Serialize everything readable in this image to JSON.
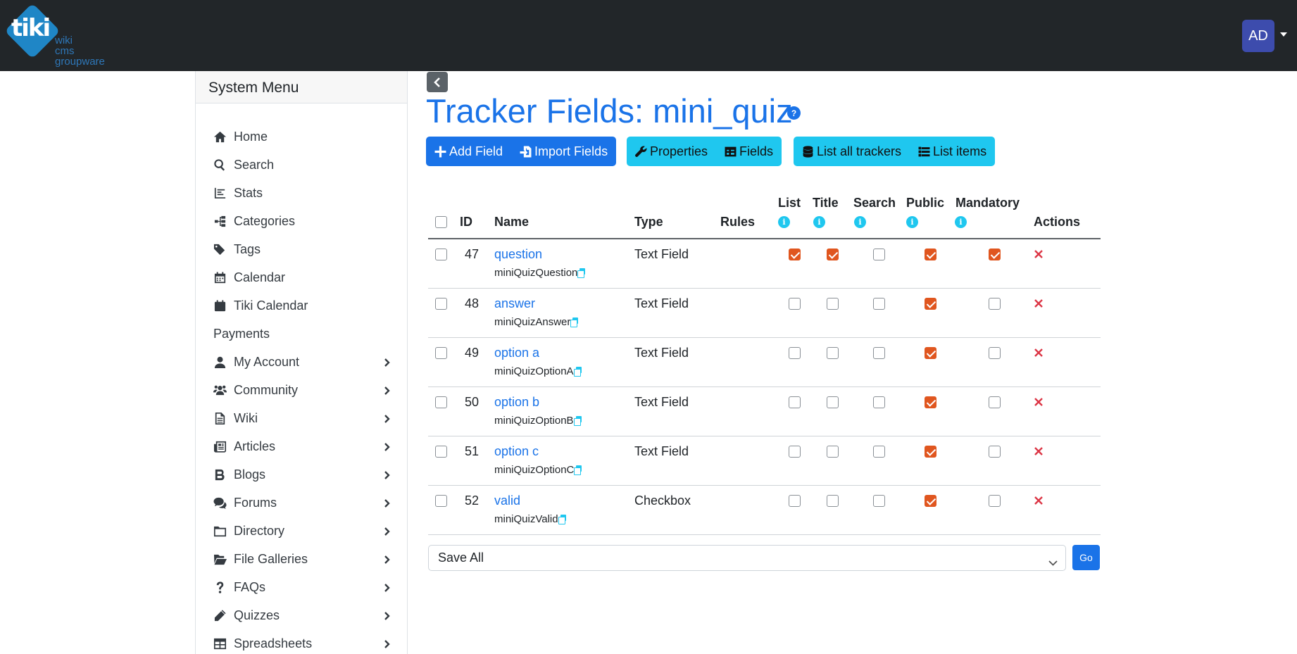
{
  "app": {
    "logo_text": "tiki",
    "logo_sub": [
      "wiki",
      "cms",
      "groupware"
    ],
    "user_initials": "AD"
  },
  "sidebar": {
    "title": "System Menu",
    "items": [
      {
        "label": "Home",
        "icon": "home-icon",
        "chevron": false
      },
      {
        "label": "Search",
        "icon": "search-icon",
        "chevron": false
      },
      {
        "label": "Stats",
        "icon": "chart-icon",
        "chevron": false
      },
      {
        "label": "Categories",
        "icon": "sitemap-icon",
        "chevron": false
      },
      {
        "label": "Tags",
        "icon": "tags-icon",
        "chevron": false
      },
      {
        "label": "Calendar",
        "icon": "calendar-icon",
        "chevron": false
      },
      {
        "label": "Tiki Calendar",
        "icon": "calendar-solid-icon",
        "chevron": false
      },
      {
        "label": "Payments",
        "icon": "",
        "chevron": false
      },
      {
        "label": "My Account",
        "icon": "user-icon",
        "chevron": true
      },
      {
        "label": "Community",
        "icon": "users-icon",
        "chevron": true
      },
      {
        "label": "Wiki",
        "icon": "file-icon",
        "chevron": true
      },
      {
        "label": "Articles",
        "icon": "newspaper-icon",
        "chevron": true
      },
      {
        "label": "Blogs",
        "icon": "bold-icon",
        "chevron": true
      },
      {
        "label": "Forums",
        "icon": "comments-icon",
        "chevron": true
      },
      {
        "label": "Directory",
        "icon": "folder-icon",
        "chevron": true
      },
      {
        "label": "File Galleries",
        "icon": "folder-open-icon",
        "chevron": true
      },
      {
        "label": "FAQs",
        "icon": "question-icon",
        "chevron": true
      },
      {
        "label": "Quizzes",
        "icon": "pencil-icon",
        "chevron": true
      },
      {
        "label": "Spreadsheets",
        "icon": "table-icon",
        "chevron": true
      }
    ]
  },
  "main": {
    "title": "Tracker Fields: mini_quiz",
    "help_glyph": "?",
    "toolbar": {
      "add_field": "Add Field",
      "import_fields": "Import Fields",
      "properties": "Properties",
      "fields": "Fields",
      "list_all_trackers": "List all trackers",
      "list_items": "List items"
    },
    "table": {
      "headers": {
        "id": "ID",
        "name": "Name",
        "type": "Type",
        "rules": "Rules",
        "list": "List",
        "title": "Title",
        "search": "Search",
        "public": "Public",
        "mandatory": "Mandatory",
        "actions": "Actions"
      },
      "info_glyph": "i",
      "rows": [
        {
          "id": "47",
          "name": "question",
          "perm": "miniQuizQuestion",
          "type": "Text Field",
          "list": true,
          "title": true,
          "search": false,
          "public": true,
          "mandatory": true
        },
        {
          "id": "48",
          "name": "answer",
          "perm": "miniQuizAnswer",
          "type": "Text Field",
          "list": false,
          "title": false,
          "search": false,
          "public": true,
          "mandatory": false
        },
        {
          "id": "49",
          "name": "option a",
          "perm": "miniQuizOptionA",
          "type": "Text Field",
          "list": false,
          "title": false,
          "search": false,
          "public": true,
          "mandatory": false
        },
        {
          "id": "50",
          "name": "option b",
          "perm": "miniQuizOptionB",
          "type": "Text Field",
          "list": false,
          "title": false,
          "search": false,
          "public": true,
          "mandatory": false
        },
        {
          "id": "51",
          "name": "option c",
          "perm": "miniQuizOptionC",
          "type": "Text Field",
          "list": false,
          "title": false,
          "search": false,
          "public": true,
          "mandatory": false
        },
        {
          "id": "52",
          "name": "valid",
          "perm": "miniQuizValid",
          "type": "Checkbox",
          "list": false,
          "title": false,
          "search": false,
          "public": true,
          "mandatory": false
        }
      ]
    },
    "bulk_action": {
      "selected": "Save All",
      "go_label": "Go"
    }
  },
  "colors": {
    "navbar": "#222629",
    "primary": "#1a73e8",
    "info": "#1fc7ef",
    "checked": "#e0561f",
    "danger": "#dc3545"
  }
}
